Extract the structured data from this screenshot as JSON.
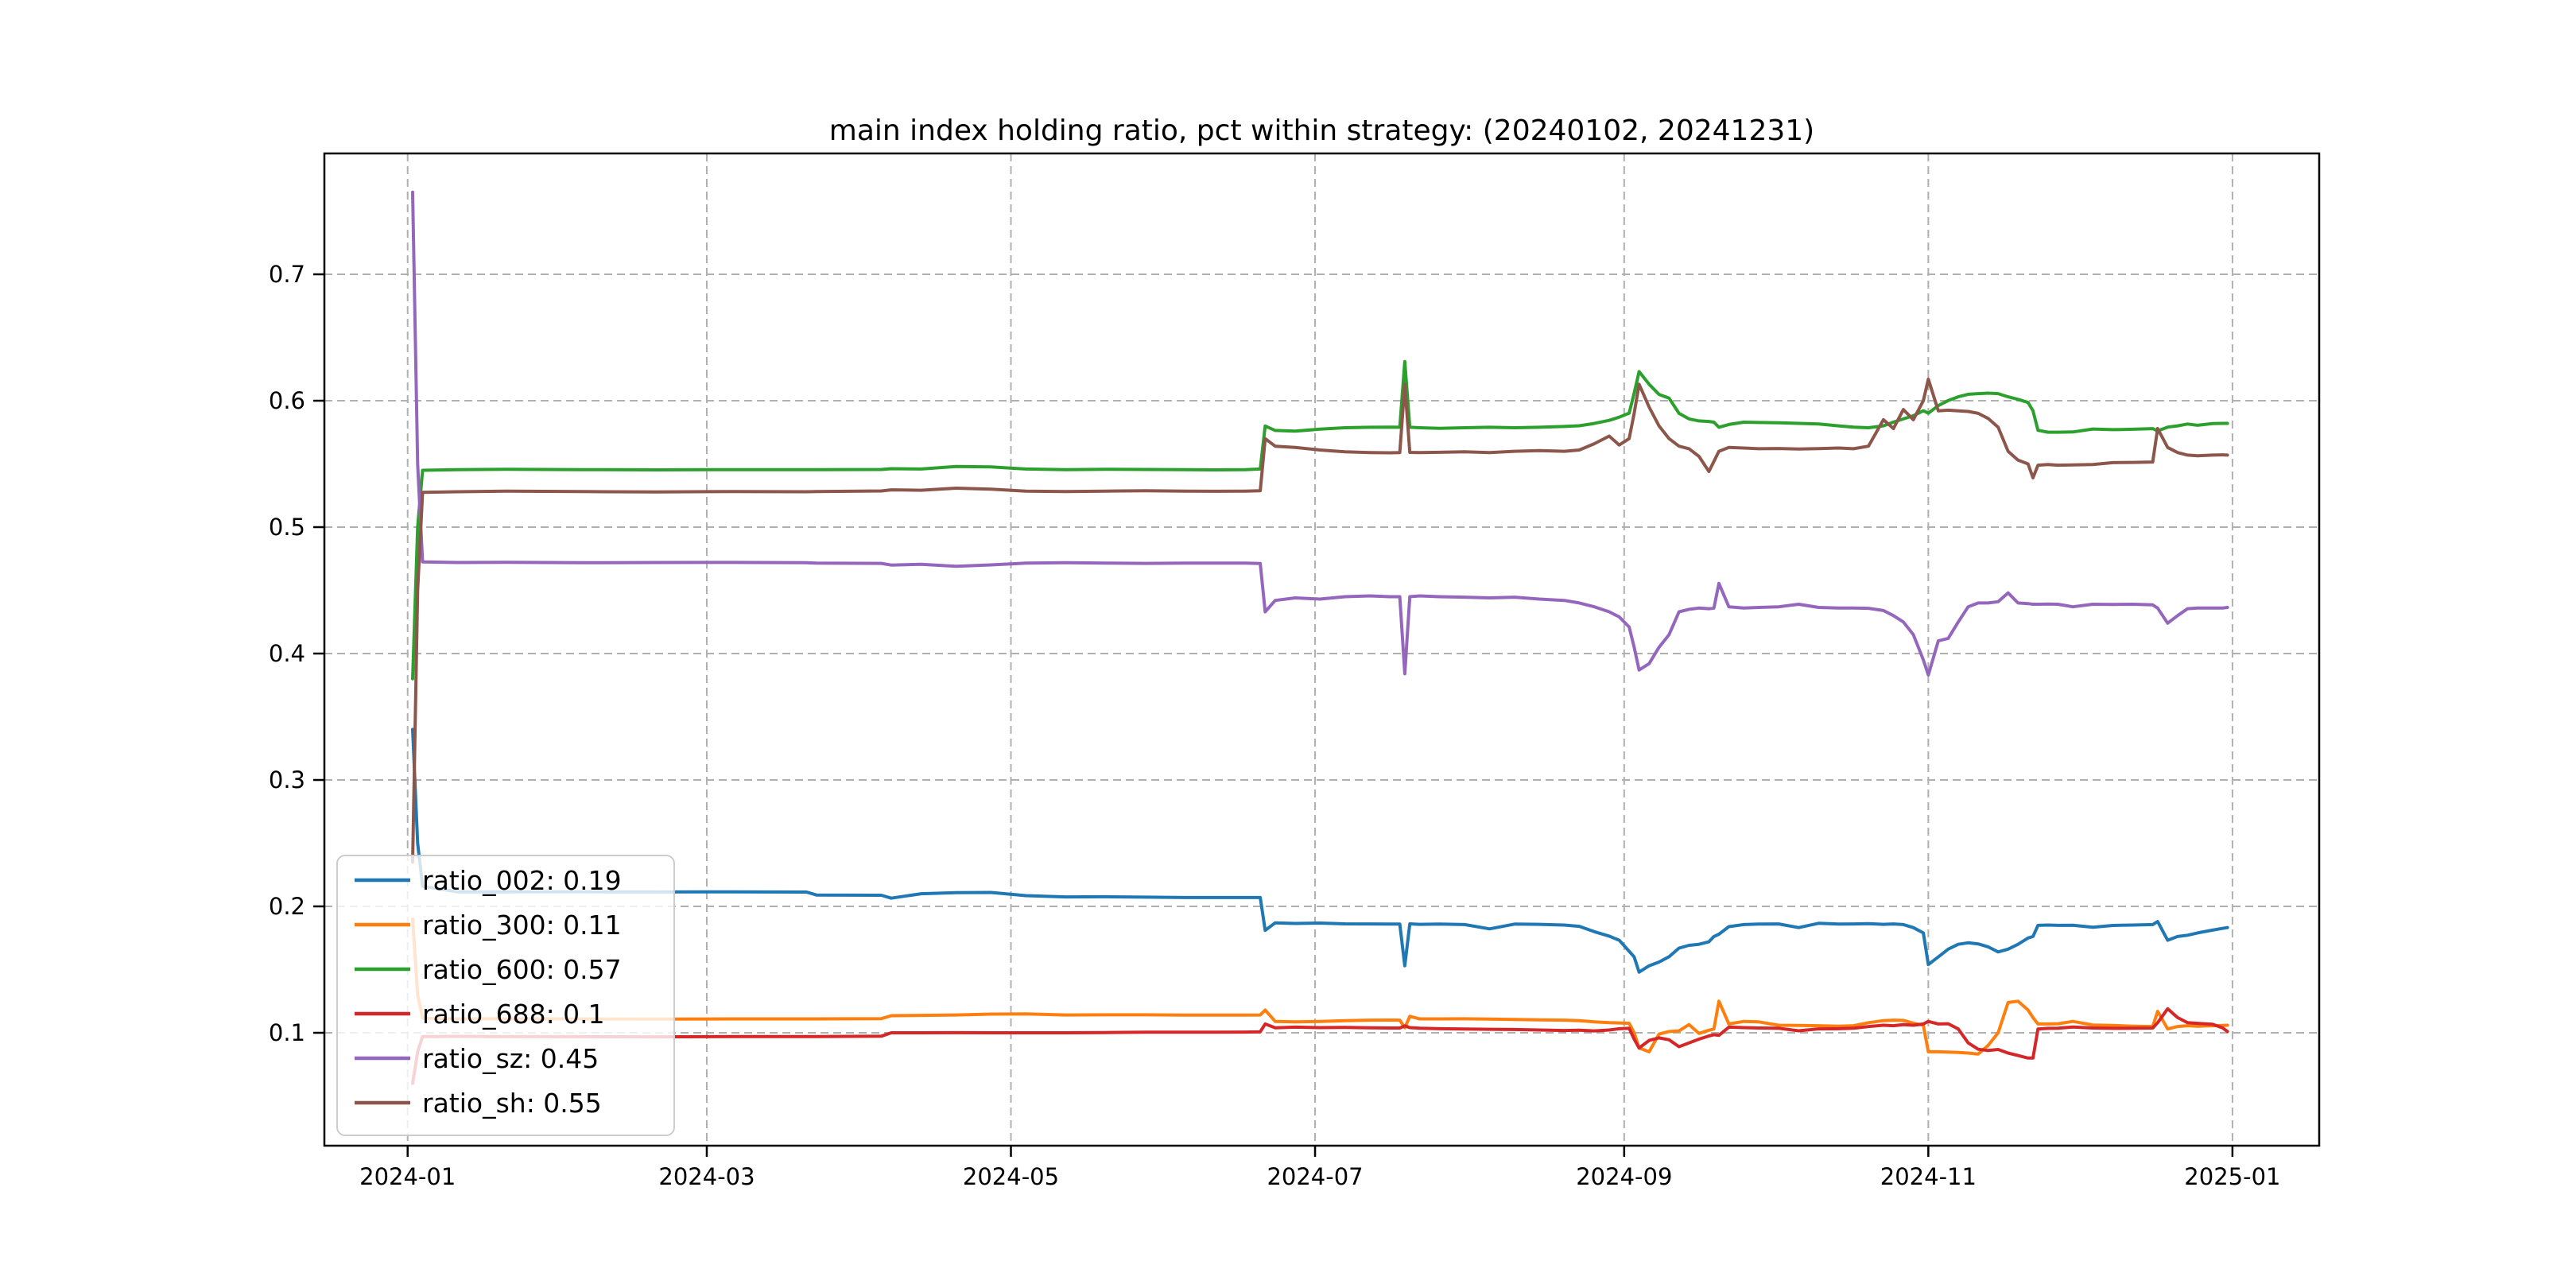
{
  "figure": {
    "background": "#ffffff"
  },
  "chart_data": {
    "type": "line",
    "title": "main index holding ratio, pct within strategy: (20240102, 20241231)",
    "xlabel": "",
    "ylabel": "",
    "grid": true,
    "grid_style": "dashed",
    "grid_color": "#b0b0b0",
    "legend": {
      "position": "lower left"
    },
    "x_axis": {
      "unit": "days since 2024-01-01",
      "range_days": [
        -16.7,
        383.4
      ],
      "tick_days": [
        0,
        60,
        121,
        182,
        244,
        305,
        366
      ],
      "tick_labels": [
        "2024-01",
        "2024-03",
        "2024-05",
        "2024-07",
        "2024-09",
        "2024-11",
        "2025-01"
      ]
    },
    "y_axis": {
      "range": [
        0.0107,
        0.7956
      ],
      "ticks": [
        0.1,
        0.2,
        0.3,
        0.4,
        0.5,
        0.6,
        0.7
      ],
      "tick_labels": [
        "0.1",
        "0.2",
        "0.3",
        "0.4",
        "0.5",
        "0.6",
        "0.7"
      ]
    },
    "days": [
      1,
      2,
      3,
      10,
      20,
      35,
      50,
      65,
      80,
      82,
      95,
      97,
      103,
      110,
      117,
      124,
      132,
      140,
      148,
      156,
      162,
      168,
      171,
      172,
      174,
      178,
      183,
      188,
      193,
      197,
      199,
      200,
      201,
      203,
      207,
      212,
      217,
      222,
      227,
      232,
      235,
      238,
      241,
      243,
      245,
      246,
      247,
      249,
      251,
      253,
      255,
      257,
      259,
      261,
      262,
      263,
      265,
      268,
      271,
      275,
      279,
      283,
      287,
      290,
      293,
      296,
      298,
      300,
      302,
      304,
      305,
      307,
      309,
      311,
      313,
      315,
      317,
      319,
      321,
      323,
      325,
      326,
      327,
      329,
      331,
      334,
      338,
      342,
      346,
      350,
      351,
      353,
      355,
      357,
      359,
      362,
      364,
      365
    ],
    "series": [
      {
        "name": "ratio_002",
        "legend_label": "ratio_002: 0.19",
        "color": "#1f77b4",
        "values": [
          0.34,
          0.25,
          0.216,
          0.2115,
          0.2115,
          0.2116,
          0.2114,
          0.2115,
          0.2113,
          0.209,
          0.2088,
          0.2065,
          0.21,
          0.2108,
          0.211,
          0.2085,
          0.2075,
          0.2076,
          0.2073,
          0.207,
          0.207,
          0.207,
          0.207,
          0.181,
          0.187,
          0.1865,
          0.1868,
          0.1862,
          0.1861,
          0.186,
          0.186,
          0.153,
          0.1862,
          0.1858,
          0.186,
          0.1856,
          0.1822,
          0.186,
          0.1858,
          0.1852,
          0.1842,
          0.18,
          0.1765,
          0.1732,
          0.1645,
          0.16,
          0.148,
          0.153,
          0.156,
          0.1602,
          0.167,
          0.1692,
          0.17,
          0.172,
          0.1762,
          0.178,
          0.184,
          0.1856,
          0.186,
          0.1861,
          0.1832,
          0.1866,
          0.186,
          0.1861,
          0.1863,
          0.1858,
          0.1861,
          0.1856,
          0.1832,
          0.179,
          0.154,
          0.16,
          0.1662,
          0.17,
          0.1712,
          0.1703,
          0.168,
          0.164,
          0.1662,
          0.17,
          0.175,
          0.1762,
          0.185,
          0.1852,
          0.185,
          0.1851,
          0.1835,
          0.1849,
          0.1852,
          0.1856,
          0.188,
          0.1732,
          0.1762,
          0.1772,
          0.179,
          0.1812,
          0.1826,
          0.1832
        ]
      },
      {
        "name": "ratio_300",
        "legend_label": "ratio_300: 0.11",
        "color": "#ff7f0e",
        "values": [
          0.19,
          0.13,
          0.1115,
          0.111,
          0.1111,
          0.111,
          0.1109,
          0.111,
          0.111,
          0.111,
          0.1112,
          0.1135,
          0.1138,
          0.1141,
          0.1148,
          0.115,
          0.1141,
          0.1142,
          0.1142,
          0.114,
          0.114,
          0.114,
          0.1141,
          0.118,
          0.109,
          0.1086,
          0.109,
          0.1096,
          0.11,
          0.1101,
          0.11,
          0.104,
          0.113,
          0.111,
          0.111,
          0.1111,
          0.1108,
          0.1106,
          0.1102,
          0.11,
          0.1096,
          0.1086,
          0.108,
          0.1078,
          0.1075,
          0.1,
          0.088,
          0.085,
          0.099,
          0.101,
          0.1015,
          0.1065,
          0.0995,
          0.102,
          0.103,
          0.125,
          0.107,
          0.109,
          0.1086,
          0.106,
          0.1058,
          0.1056,
          0.1052,
          0.1056,
          0.108,
          0.1096,
          0.11,
          0.1098,
          0.1076,
          0.106,
          0.085,
          0.085,
          0.0848,
          0.0845,
          0.084,
          0.0832,
          0.09,
          0.1,
          0.124,
          0.125,
          0.118,
          0.112,
          0.107,
          0.107,
          0.1072,
          0.109,
          0.1062,
          0.1058,
          0.1052,
          0.105,
          0.117,
          0.103,
          0.105,
          0.1056,
          0.1052,
          0.1056,
          0.1058,
          0.106
        ]
      },
      {
        "name": "ratio_600",
        "legend_label": "ratio_600: 0.57",
        "color": "#2ca02c",
        "values": [
          0.38,
          0.5,
          0.545,
          0.5455,
          0.5458,
          0.5455,
          0.5453,
          0.5455,
          0.5455,
          0.5455,
          0.5456,
          0.5462,
          0.546,
          0.548,
          0.5476,
          0.546,
          0.5455,
          0.5458,
          0.5456,
          0.5455,
          0.5453,
          0.5455,
          0.546,
          0.58,
          0.5765,
          0.576,
          0.5775,
          0.5786,
          0.579,
          0.5791,
          0.579,
          0.631,
          0.579,
          0.5786,
          0.5781,
          0.5786,
          0.579,
          0.5786,
          0.579,
          0.5796,
          0.5802,
          0.582,
          0.5845,
          0.587,
          0.5902,
          0.606,
          0.623,
          0.613,
          0.605,
          0.602,
          0.59,
          0.5856,
          0.584,
          0.5836,
          0.583,
          0.579,
          0.5812,
          0.583,
          0.5828,
          0.5826,
          0.5821,
          0.5816,
          0.5801,
          0.5791,
          0.5786,
          0.5801,
          0.5831,
          0.5856,
          0.5881,
          0.5921,
          0.5901,
          0.5961,
          0.6001,
          0.6031,
          0.6051,
          0.6056,
          0.606,
          0.6056,
          0.6031,
          0.6011,
          0.5986,
          0.5921,
          0.5766,
          0.5751,
          0.5751,
          0.5753,
          0.5776,
          0.5771,
          0.5774,
          0.5779,
          0.5761,
          0.5791,
          0.5801,
          0.5816,
          0.5806,
          0.5819,
          0.5821,
          0.5821
        ]
      },
      {
        "name": "ratio_688",
        "legend_label": "ratio_688: 0.1",
        "color": "#d62728",
        "values": [
          0.06,
          0.085,
          0.097,
          0.0972,
          0.097,
          0.0969,
          0.0968,
          0.097,
          0.097,
          0.097,
          0.0973,
          0.1,
          0.1,
          0.1001,
          0.1,
          0.1,
          0.1,
          0.1002,
          0.1005,
          0.1005,
          0.1005,
          0.1006,
          0.1008,
          0.107,
          0.104,
          0.1045,
          0.1041,
          0.1042,
          0.104,
          0.1038,
          0.1038,
          0.1055,
          0.1041,
          0.1036,
          0.1032,
          0.103,
          0.1028,
          0.1026,
          0.1022,
          0.1018,
          0.102,
          0.1015,
          0.1022,
          0.1032,
          0.1035,
          0.095,
          0.088,
          0.094,
          0.096,
          0.0945,
          0.089,
          0.092,
          0.095,
          0.0975,
          0.0985,
          0.098,
          0.1045,
          0.1041,
          0.1038,
          0.1036,
          0.1016,
          0.1031,
          0.1032,
          0.1036,
          0.105,
          0.106,
          0.1056,
          0.1065,
          0.106,
          0.107,
          0.109,
          0.107,
          0.1072,
          0.103,
          0.092,
          0.087,
          0.086,
          0.0868,
          0.084,
          0.082,
          0.08,
          0.08,
          0.103,
          0.1035,
          0.1036,
          0.1046,
          0.1038,
          0.1035,
          0.1036,
          0.1038,
          0.108,
          0.119,
          0.112,
          0.108,
          0.1075,
          0.1068,
          0.104,
          0.101
        ]
      },
      {
        "name": "ratio_sz",
        "legend_label": "ratio_sz: 0.45",
        "color": "#9467bd",
        "values": [
          0.765,
          0.55,
          0.4725,
          0.472,
          0.4722,
          0.4718,
          0.472,
          0.4721,
          0.4718,
          0.4715,
          0.4713,
          0.47,
          0.4706,
          0.469,
          0.4701,
          0.4715,
          0.4718,
          0.4716,
          0.4713,
          0.4715,
          0.4716,
          0.4715,
          0.4712,
          0.433,
          0.442,
          0.444,
          0.4431,
          0.445,
          0.4456,
          0.445,
          0.445,
          0.384,
          0.445,
          0.4456,
          0.445,
          0.4446,
          0.444,
          0.4446,
          0.4431,
          0.442,
          0.44,
          0.437,
          0.433,
          0.429,
          0.421,
          0.405,
          0.387,
          0.392,
          0.405,
          0.415,
          0.433,
          0.435,
          0.436,
          0.4355,
          0.436,
          0.4555,
          0.437,
          0.436,
          0.4365,
          0.437,
          0.439,
          0.4365,
          0.436,
          0.436,
          0.4358,
          0.434,
          0.43,
          0.425,
          0.415,
          0.395,
          0.383,
          0.41,
          0.412,
          0.425,
          0.437,
          0.44,
          0.44,
          0.441,
          0.448,
          0.44,
          0.4395,
          0.439,
          0.439,
          0.4392,
          0.439,
          0.437,
          0.439,
          0.4388,
          0.439,
          0.4385,
          0.436,
          0.424,
          0.43,
          0.4355,
          0.436,
          0.436,
          0.436,
          0.4365
        ]
      },
      {
        "name": "ratio_sh",
        "legend_label": "ratio_sh: 0.55",
        "color": "#8c564b",
        "values": [
          0.235,
          0.45,
          0.5275,
          0.528,
          0.5285,
          0.5281,
          0.5278,
          0.5282,
          0.528,
          0.5282,
          0.5286,
          0.5295,
          0.5292,
          0.5308,
          0.53,
          0.5285,
          0.5282,
          0.5285,
          0.5288,
          0.5285,
          0.5284,
          0.5285,
          0.5288,
          0.57,
          0.564,
          0.563,
          0.561,
          0.5596,
          0.559,
          0.5588,
          0.559,
          0.613,
          0.5591,
          0.559,
          0.5592,
          0.5596,
          0.559,
          0.56,
          0.5606,
          0.56,
          0.561,
          0.566,
          0.572,
          0.565,
          0.57,
          0.59,
          0.613,
          0.595,
          0.58,
          0.57,
          0.564,
          0.562,
          0.556,
          0.544,
          0.552,
          0.56,
          0.563,
          0.5626,
          0.562,
          0.5622,
          0.5618,
          0.5621,
          0.5626,
          0.562,
          0.564,
          0.585,
          0.578,
          0.593,
          0.585,
          0.6,
          0.617,
          0.592,
          0.5925,
          0.592,
          0.5915,
          0.59,
          0.586,
          0.579,
          0.56,
          0.553,
          0.55,
          0.539,
          0.549,
          0.5495,
          0.549,
          0.5492,
          0.5495,
          0.551,
          0.5512,
          0.5515,
          0.578,
          0.563,
          0.559,
          0.557,
          0.5565,
          0.557,
          0.5572,
          0.557
        ]
      }
    ]
  }
}
